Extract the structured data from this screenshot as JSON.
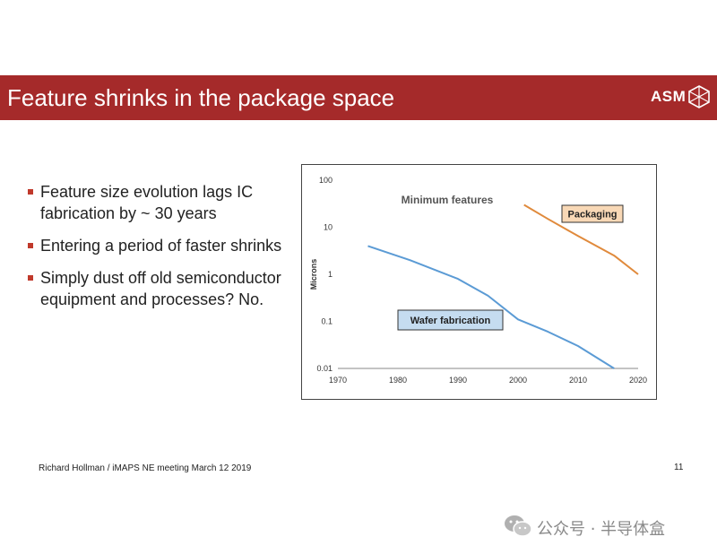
{
  "header": {
    "title": "Feature shrinks in the package space",
    "logo_text": "ASM",
    "background_color": "#a52a2a"
  },
  "bullets": [
    "Feature size evolution lags IC fabrication by ~ 30 years",
    "Entering a period of faster shrinks",
    "Simply dust off old semiconductor equipment and processes?  No."
  ],
  "bullet_color": "#c0392b",
  "footer": {
    "text": "Richard Hollman / iMAPS NE meeting March 12 2019",
    "page_number": "11"
  },
  "watermark": {
    "text": "公众号 · 半导体盒",
    "icon": "wechat-icon"
  },
  "chart_data": {
    "type": "line",
    "title": "Minimum features",
    "ylabel": "Microns",
    "xlabel": "",
    "xlim": [
      1970,
      2020
    ],
    "ylim": [
      0.01,
      100
    ],
    "yscale": "log",
    "x_ticks": [
      "1970",
      "1980",
      "1990",
      "2000",
      "2010",
      "2020"
    ],
    "y_ticks": [
      {
        "label": "100",
        "value": 100
      },
      {
        "label": "10",
        "value": 10
      },
      {
        "label": "1",
        "value": 1
      },
      {
        "label": "0.1",
        "value": 0.1
      },
      {
        "label": "0.01",
        "value": 0.01
      }
    ],
    "grid": false,
    "series": [
      {
        "name": "Wafer fabrication",
        "color": "#5b9bd5",
        "label_box_color": "#c5dcf0",
        "points": [
          [
            1975,
            4
          ],
          [
            1982,
            2
          ],
          [
            1990,
            0.8
          ],
          [
            1995,
            0.35
          ],
          [
            2000,
            0.11
          ],
          [
            2005,
            0.06
          ],
          [
            2010,
            0.03
          ],
          [
            2016,
            0.01
          ]
        ]
      },
      {
        "name": "Packaging",
        "color": "#e08a3c",
        "label_box_color": "#f8d8b6",
        "points": [
          [
            2001,
            30
          ],
          [
            2005,
            15
          ],
          [
            2010,
            6.5
          ],
          [
            2016,
            2.5
          ],
          [
            2020,
            1
          ]
        ]
      }
    ]
  }
}
